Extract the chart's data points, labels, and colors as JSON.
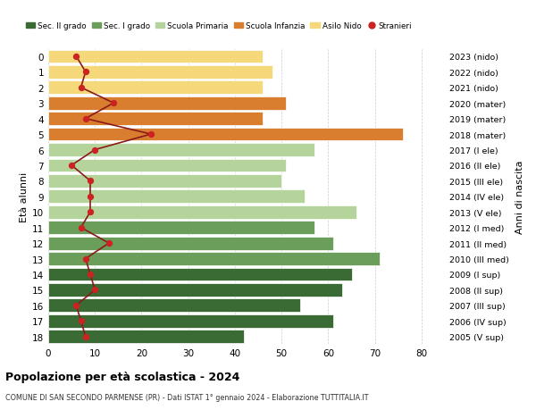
{
  "ages": [
    0,
    1,
    2,
    3,
    4,
    5,
    6,
    7,
    8,
    9,
    10,
    11,
    12,
    13,
    14,
    15,
    16,
    17,
    18
  ],
  "years": [
    "2023 (nido)",
    "2022 (nido)",
    "2021 (nido)",
    "2020 (mater)",
    "2019 (mater)",
    "2018 (mater)",
    "2017 (I ele)",
    "2016 (II ele)",
    "2015 (III ele)",
    "2014 (IV ele)",
    "2013 (V ele)",
    "2012 (I med)",
    "2011 (II med)",
    "2010 (III med)",
    "2009 (I sup)",
    "2008 (II sup)",
    "2007 (III sup)",
    "2006 (IV sup)",
    "2005 (V sup)"
  ],
  "bar_values": [
    46,
    48,
    46,
    51,
    46,
    76,
    57,
    51,
    50,
    55,
    66,
    57,
    61,
    71,
    65,
    63,
    54,
    61,
    42
  ],
  "bar_colors": [
    "#f5d87a",
    "#f5d87a",
    "#f5d87a",
    "#d97e2e",
    "#d97e2e",
    "#d97e2e",
    "#b5d49b",
    "#b5d49b",
    "#b5d49b",
    "#b5d49b",
    "#b5d49b",
    "#6a9e5a",
    "#6a9e5a",
    "#6a9e5a",
    "#3a6b35",
    "#3a6b35",
    "#3a6b35",
    "#3a6b35",
    "#3a6b35"
  ],
  "stranieri_values": [
    6,
    8,
    7,
    14,
    8,
    22,
    10,
    5,
    9,
    9,
    9,
    7,
    13,
    8,
    9,
    10,
    6,
    7,
    8
  ],
  "stranieri_line_color": "#8b1a1a",
  "stranieri_dot_color": "#cc2222",
  "ylabel_left": "Età alunni",
  "ylabel_right": "Anni di nascita",
  "xlim": [
    0,
    85
  ],
  "xticks": [
    0,
    10,
    20,
    30,
    40,
    50,
    60,
    70,
    80
  ],
  "ylim_min": -0.5,
  "ylim_max": 18.5,
  "title": "Popolazione per età scolastica - 2024",
  "subtitle": "COMUNE DI SAN SECONDO PARMENSE (PR) - Dati ISTAT 1° gennaio 2024 - Elaborazione TUTTITALIA.IT",
  "legend_labels": [
    "Sec. II grado",
    "Sec. I grado",
    "Scuola Primaria",
    "Scuola Infanzia",
    "Asilo Nido",
    "Stranieri"
  ],
  "legend_colors": [
    "#3a6b35",
    "#6a9e5a",
    "#b5d49b",
    "#d97e2e",
    "#f5d87a",
    "#cc2222"
  ],
  "bg_color": "#ffffff",
  "grid_color": "#cccccc"
}
